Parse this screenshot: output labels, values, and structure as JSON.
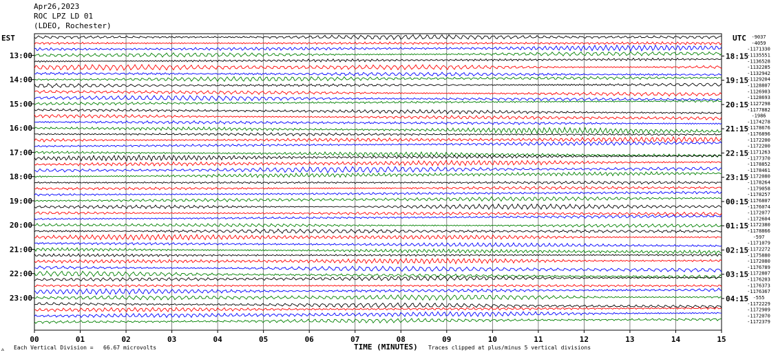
{
  "header": {
    "date": "Apr26,2023",
    "station": "ROC LPZ LD 01",
    "network": "(LDEO, Rochester)"
  },
  "left_axis_title": "EST",
  "right_axis_title": "UTC",
  "footer": {
    "marker": "ⲁ",
    "vertical_division": "Each Vertical Division =   66.67 microvolts",
    "clipped_note": "Traces clipped at plus/minus 5 vertical divisions"
  },
  "chart_data": {
    "type": "line",
    "title": "",
    "xlabel": "TIME (MINUTES)",
    "ylabel": "",
    "xlim": [
      0,
      15
    ],
    "x_ticks": [
      "00",
      "01",
      "02",
      "03",
      "04",
      "05",
      "06",
      "07",
      "08",
      "09",
      "10",
      "11",
      "12",
      "13",
      "14",
      "15"
    ],
    "trace_count": 48,
    "trace_colors": [
      "#000000",
      "#ff0000",
      "#0000ff",
      "#008000"
    ],
    "left_time_labels": [
      "13:00",
      "14:00",
      "15:00",
      "16:00",
      "17:00",
      "18:00",
      "19:00",
      "20:00",
      "21:00",
      "22:00",
      "23:00"
    ],
    "right_time_labels": [
      "18:15",
      "19:15",
      "20:15",
      "21:15",
      "22:15",
      "23:15",
      "00:15",
      "01:15",
      "02:15",
      "03:15",
      "04:15"
    ],
    "trace_offsets": [
      "-9037",
      "-4059",
      "-1171330",
      "-1135551",
      "-1136528",
      "-1132285",
      "-1132942",
      "-1129204",
      "-1128807",
      "-1126903",
      "-1128693",
      "-1127298",
      "-1177882",
      "-1986",
      "-1174278",
      "-1178676",
      "-1176896",
      "-1172200",
      "-1172200",
      "-1171263",
      "-1177370",
      "-1178852",
      "-1178461",
      "-1172080",
      "-1178264",
      "-1179058",
      "-1178257",
      "-1176807",
      "-1176074",
      "-1172077",
      "-1172604",
      "-1172380",
      "-1178866",
      "-597",
      "-1171079",
      "-1172272",
      "-1175880",
      "-1172080",
      "-1176789",
      "-1172807",
      "-1176203",
      "-1176373",
      "-1176367",
      "-555",
      "-1172229",
      "-1172909",
      "-1172070",
      "-1172379"
    ]
  }
}
